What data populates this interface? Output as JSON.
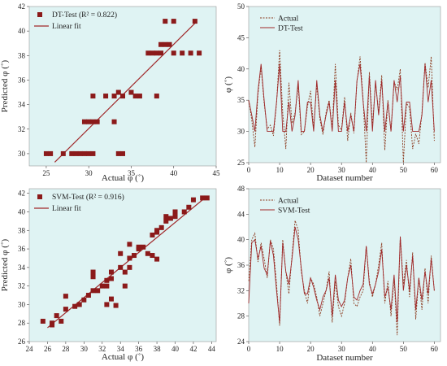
{
  "colors": {
    "panel_bg": "#dff3f3",
    "marker": "#8b1a1a",
    "fit": "#a0282a",
    "actual": "#8b3a1e",
    "pred": "#a0282a"
  },
  "chart_data": [
    {
      "id": "dt_scatter",
      "type": "scatter",
      "xlabel": "Actual φ (˚)",
      "ylabel": "Predicted φ (˚)",
      "xlim": [
        23,
        45
      ],
      "ylim": [
        29,
        42
      ],
      "xticks": [
        25,
        30,
        35,
        40,
        45
      ],
      "yticks": [
        30,
        32,
        34,
        36,
        38,
        40,
        42
      ],
      "legend": [
        "DT-Test (R² = 0.822)",
        "Linear fit"
      ],
      "legend_position": "top-left",
      "fit": {
        "x0": 26,
        "y0": 29.3,
        "x1": 42.6,
        "y1": 40.7
      },
      "points": [
        [
          25,
          30
        ],
        [
          25.5,
          30
        ],
        [
          27,
          30
        ],
        [
          28,
          30
        ],
        [
          28.5,
          30
        ],
        [
          29,
          30
        ],
        [
          29.5,
          30
        ],
        [
          30,
          30
        ],
        [
          30.5,
          30
        ],
        [
          33.5,
          30
        ],
        [
          34,
          30
        ],
        [
          29.5,
          32.6
        ],
        [
          30,
          32.6
        ],
        [
          30.5,
          32.6
        ],
        [
          31,
          32.6
        ],
        [
          33,
          32.6
        ],
        [
          30.5,
          34.7
        ],
        [
          32,
          34.7
        ],
        [
          33,
          34.7
        ],
        [
          33.5,
          35
        ],
        [
          34,
          34.7
        ],
        [
          35,
          35
        ],
        [
          35.5,
          34.7
        ],
        [
          36,
          34.7
        ],
        [
          38,
          34.7
        ],
        [
          37,
          38.2
        ],
        [
          37.5,
          38.2
        ],
        [
          38,
          38.2
        ],
        [
          38.5,
          38.2
        ],
        [
          38.5,
          38.9
        ],
        [
          39,
          38.9
        ],
        [
          39.5,
          38.9
        ],
        [
          40,
          38.2
        ],
        [
          41,
          38.2
        ],
        [
          42,
          38.2
        ],
        [
          43,
          38.2
        ],
        [
          39,
          40.8
        ],
        [
          40,
          40.8
        ],
        [
          42.5,
          40.8
        ]
      ]
    },
    {
      "id": "dt_series",
      "type": "line",
      "xlabel": "Dataset number",
      "ylabel": "φ (˚)",
      "xlim": [
        0,
        62
      ],
      "ylim": [
        25,
        50
      ],
      "xticks": [
        0,
        10,
        20,
        30,
        40,
        50,
        60
      ],
      "yticks": [
        25,
        30,
        35,
        40,
        45,
        50
      ],
      "legend_position": "top-left",
      "series": [
        {
          "name": "Actual",
          "dashed": true,
          "values": [
            35,
            31.8,
            27.5,
            36,
            40.3,
            34.5,
            30.4,
            31,
            29.3,
            34.5,
            43,
            33,
            27.2,
            37.8,
            31.3,
            33,
            37.3,
            29.5,
            30,
            34,
            36.5,
            30.5,
            37.5,
            32,
            29.5,
            33,
            35,
            30.5,
            40.8,
            31,
            30.2,
            35.5,
            28.5,
            33,
            29.7,
            38,
            42,
            35,
            25,
            39.5,
            31,
            37.7,
            33,
            39,
            27,
            35,
            30,
            38,
            36.6,
            40,
            25,
            34.5,
            33.8,
            27.2,
            29.6,
            28,
            33,
            41,
            37,
            42,
            28.5
          ]
        },
        {
          "name": "DT-Test",
          "dashed": false,
          "values": [
            35,
            32.6,
            30,
            36.5,
            40.8,
            35,
            30,
            30,
            30,
            34.7,
            40.8,
            30,
            30,
            34.7,
            30,
            32.6,
            38.2,
            30,
            30,
            34.7,
            34.7,
            30,
            38.2,
            32.6,
            30,
            32.6,
            34.7,
            30,
            38.2,
            30,
            30,
            34.7,
            30,
            32.6,
            30,
            38.2,
            40.8,
            34.7,
            30,
            38.9,
            30,
            38.2,
            32.6,
            38.2,
            30,
            34.7,
            30,
            38.2,
            34.7,
            38.9,
            30,
            34.7,
            34.7,
            30,
            30,
            30,
            32.6,
            40.8,
            34.7,
            38.2,
            30
          ]
        }
      ]
    },
    {
      "id": "svm_scatter",
      "type": "scatter",
      "xlabel": "Actual φ (˚)",
      "ylabel": "Predicted φ (˚)",
      "xlim": [
        24,
        44.5
      ],
      "ylim": [
        26,
        42.5
      ],
      "xticks": [
        24,
        26,
        28,
        30,
        32,
        34,
        36,
        38,
        40,
        42,
        44
      ],
      "yticks": [
        26,
        28,
        30,
        32,
        34,
        36,
        38,
        40,
        42
      ],
      "legend": [
        "SVM-Test (R² = 0.916)",
        "Linear fit"
      ],
      "legend_position": "top-left",
      "fit": {
        "x0": 26,
        "y0": 27.5,
        "x1": 43.5,
        "y1": 41.7
      },
      "points": [
        [
          25.5,
          28.2
        ],
        [
          26.5,
          28
        ],
        [
          26.5,
          27.8
        ],
        [
          27,
          28.8
        ],
        [
          27.5,
          28.2
        ],
        [
          28,
          29.5
        ],
        [
          28,
          30.9
        ],
        [
          29,
          29.8
        ],
        [
          29.5,
          30
        ],
        [
          30,
          30.5
        ],
        [
          30.5,
          31
        ],
        [
          31,
          31.5
        ],
        [
          31,
          33
        ],
        [
          31,
          33.5
        ],
        [
          31.5,
          31.5
        ],
        [
          32,
          32
        ],
        [
          32.5,
          32
        ],
        [
          32.5,
          32.6
        ],
        [
          32.5,
          30
        ],
        [
          33,
          32.8
        ],
        [
          33,
          33.5
        ],
        [
          33,
          30.6
        ],
        [
          33.5,
          29.9
        ],
        [
          34,
          34
        ],
        [
          34,
          35.5
        ],
        [
          34.5,
          33.5
        ],
        [
          34.5,
          32
        ],
        [
          35,
          34
        ],
        [
          35,
          35
        ],
        [
          35,
          36.5
        ],
        [
          35.5,
          35.3
        ],
        [
          36,
          36
        ],
        [
          36,
          36.2
        ],
        [
          36.5,
          36.2
        ],
        [
          37,
          35.5
        ],
        [
          37.5,
          35.3
        ],
        [
          37.5,
          37.5
        ],
        [
          38,
          37.8
        ],
        [
          38,
          34.9
        ],
        [
          38.5,
          38.3
        ],
        [
          38,
          38
        ],
        [
          39,
          39
        ],
        [
          39.5,
          39.3
        ],
        [
          39,
          39.5
        ],
        [
          40,
          39.5
        ],
        [
          40,
          40
        ],
        [
          41,
          40
        ],
        [
          41.5,
          40.5
        ],
        [
          42,
          41.3
        ],
        [
          43,
          41.5
        ],
        [
          43.5,
          41.5
        ]
      ]
    },
    {
      "id": "svm_series",
      "type": "line",
      "xlabel": "Dataset number",
      "ylabel": "φ (˚)",
      "xlim": [
        0,
        62
      ],
      "ylim": [
        24,
        48
      ],
      "xticks": [
        0,
        10,
        20,
        30,
        40,
        50,
        60
      ],
      "yticks": [
        24,
        28,
        32,
        36,
        40,
        44,
        48
      ],
      "legend_position": "top-left",
      "series": [
        {
          "name": "Actual",
          "dashed": true,
          "values": [
            33.5,
            40,
            41,
            36.5,
            39.5,
            37,
            34,
            40,
            38.5,
            33,
            26.5,
            40,
            35,
            31.5,
            37.5,
            43,
            41.5,
            35,
            32,
            30,
            34,
            33,
            31,
            28,
            30,
            32,
            35,
            27,
            33.5,
            29.5,
            28,
            30,
            34,
            37,
            30,
            29.5,
            31,
            32,
            39,
            33.5,
            31,
            33,
            36,
            39.5,
            30,
            33.5,
            28,
            34,
            25,
            40.5,
            33,
            36.8,
            31,
            38,
            27.5,
            34,
            29,
            35.5,
            30,
            37.5,
            32
          ]
        },
        {
          "name": "SVM-Test",
          "dashed": false,
          "values": [
            30,
            39.5,
            40,
            37,
            39,
            35.5,
            34.5,
            39.8,
            37.5,
            32,
            27,
            39.5,
            35,
            33,
            37,
            42,
            40,
            35.5,
            31.5,
            31.5,
            34,
            32.5,
            30.5,
            29,
            31,
            32,
            34,
            28,
            34.5,
            30.5,
            29.5,
            30.5,
            34,
            36,
            31,
            30.5,
            32,
            33,
            39,
            33,
            31.5,
            33,
            35,
            38.5,
            31,
            32.5,
            29,
            34.5,
            27,
            40.5,
            32,
            36,
            32,
            37.5,
            29,
            34,
            30.5,
            35,
            31.5,
            37,
            32
          ]
        }
      ]
    }
  ]
}
